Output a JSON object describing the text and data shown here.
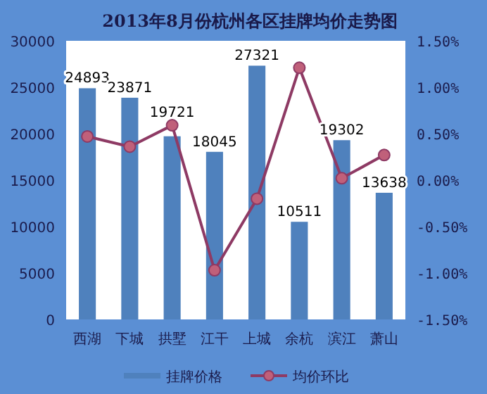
{
  "chart_data": {
    "type": "bar",
    "title": "2013年8月份杭州各区挂牌均价走势图",
    "categories": [
      "西湖",
      "下城",
      "拱墅",
      "江干",
      "上城",
      "余杭",
      "滨江",
      "萧山"
    ],
    "series": [
      {
        "name": "挂牌价格",
        "color": "#4f81bd",
        "values": [
          24893,
          23871,
          19721,
          18045,
          27321,
          10511,
          19302,
          13638
        ],
        "value_labels": [
          "24893",
          "23871",
          "19721",
          "18045",
          "27321",
          "10511",
          "19302",
          "13638"
        ]
      },
      {
        "name": "均价环比",
        "type": "line",
        "axis": "y2",
        "color": "#8e3a64",
        "marker": "circle",
        "values": [
          0.47,
          0.36,
          0.59,
          -0.97,
          -0.2,
          1.21,
          0.02,
          0.27
        ]
      }
    ],
    "ylim": [
      0,
      30000
    ],
    "yticks": [
      0,
      5000,
      10000,
      15000,
      20000,
      25000,
      30000
    ],
    "y2lim": [
      -1.5,
      1.5
    ],
    "y2ticks": [
      {
        "value": -1.5,
        "label": "-1.50%"
      },
      {
        "value": -1.0,
        "label": "-1.00%"
      },
      {
        "value": -0.5,
        "label": "-0.50%"
      },
      {
        "value": 0,
        "label": "0.00%"
      },
      {
        "value": 0.5,
        "label": "0.50%"
      },
      {
        "value": 1.0,
        "label": "1.00%"
      },
      {
        "value": 1.5,
        "label": "1.50%"
      }
    ],
    "grid": false,
    "legend": "bottom"
  }
}
